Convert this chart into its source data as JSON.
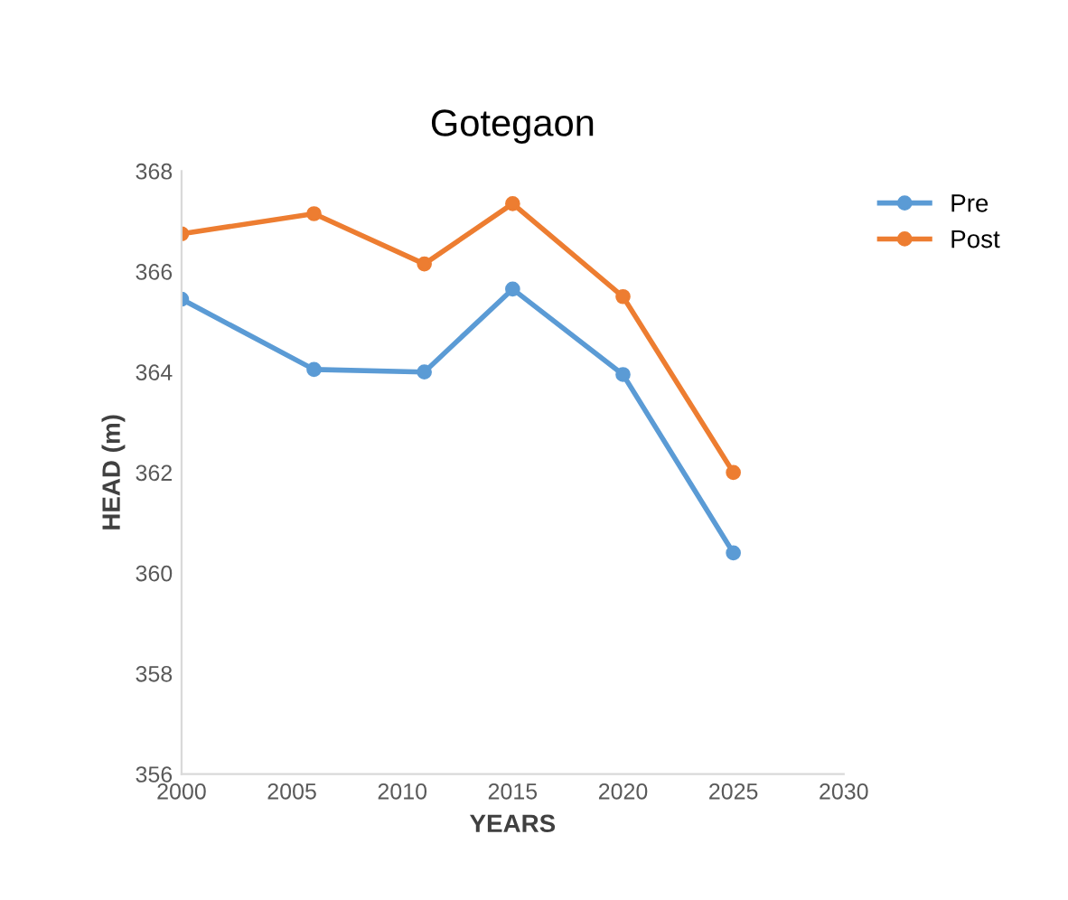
{
  "chart_data": {
    "type": "line",
    "title": "Gotegaon",
    "xlabel": "YEARS",
    "ylabel": "HEAD (m)",
    "x": [
      2000,
      2006,
      2011,
      2015,
      2020,
      2025
    ],
    "series": [
      {
        "name": "Pre",
        "color": "#5b9bd5",
        "values": [
          365.45,
          364.05,
          364.0,
          365.65,
          363.95,
          360.4
        ]
      },
      {
        "name": "Post",
        "color": "#ed7d31",
        "values": [
          366.75,
          367.15,
          366.15,
          367.35,
          365.5,
          362.0
        ]
      }
    ],
    "xlim": [
      2000,
      2030
    ],
    "xticks": [
      2000,
      2005,
      2010,
      2015,
      2020,
      2025,
      2030
    ],
    "ylim": [
      356,
      368
    ],
    "yticks": [
      356,
      358,
      360,
      362,
      364,
      366,
      368
    ],
    "grid": false,
    "legend": "top right",
    "marker": "circle",
    "line_style": "solid"
  }
}
